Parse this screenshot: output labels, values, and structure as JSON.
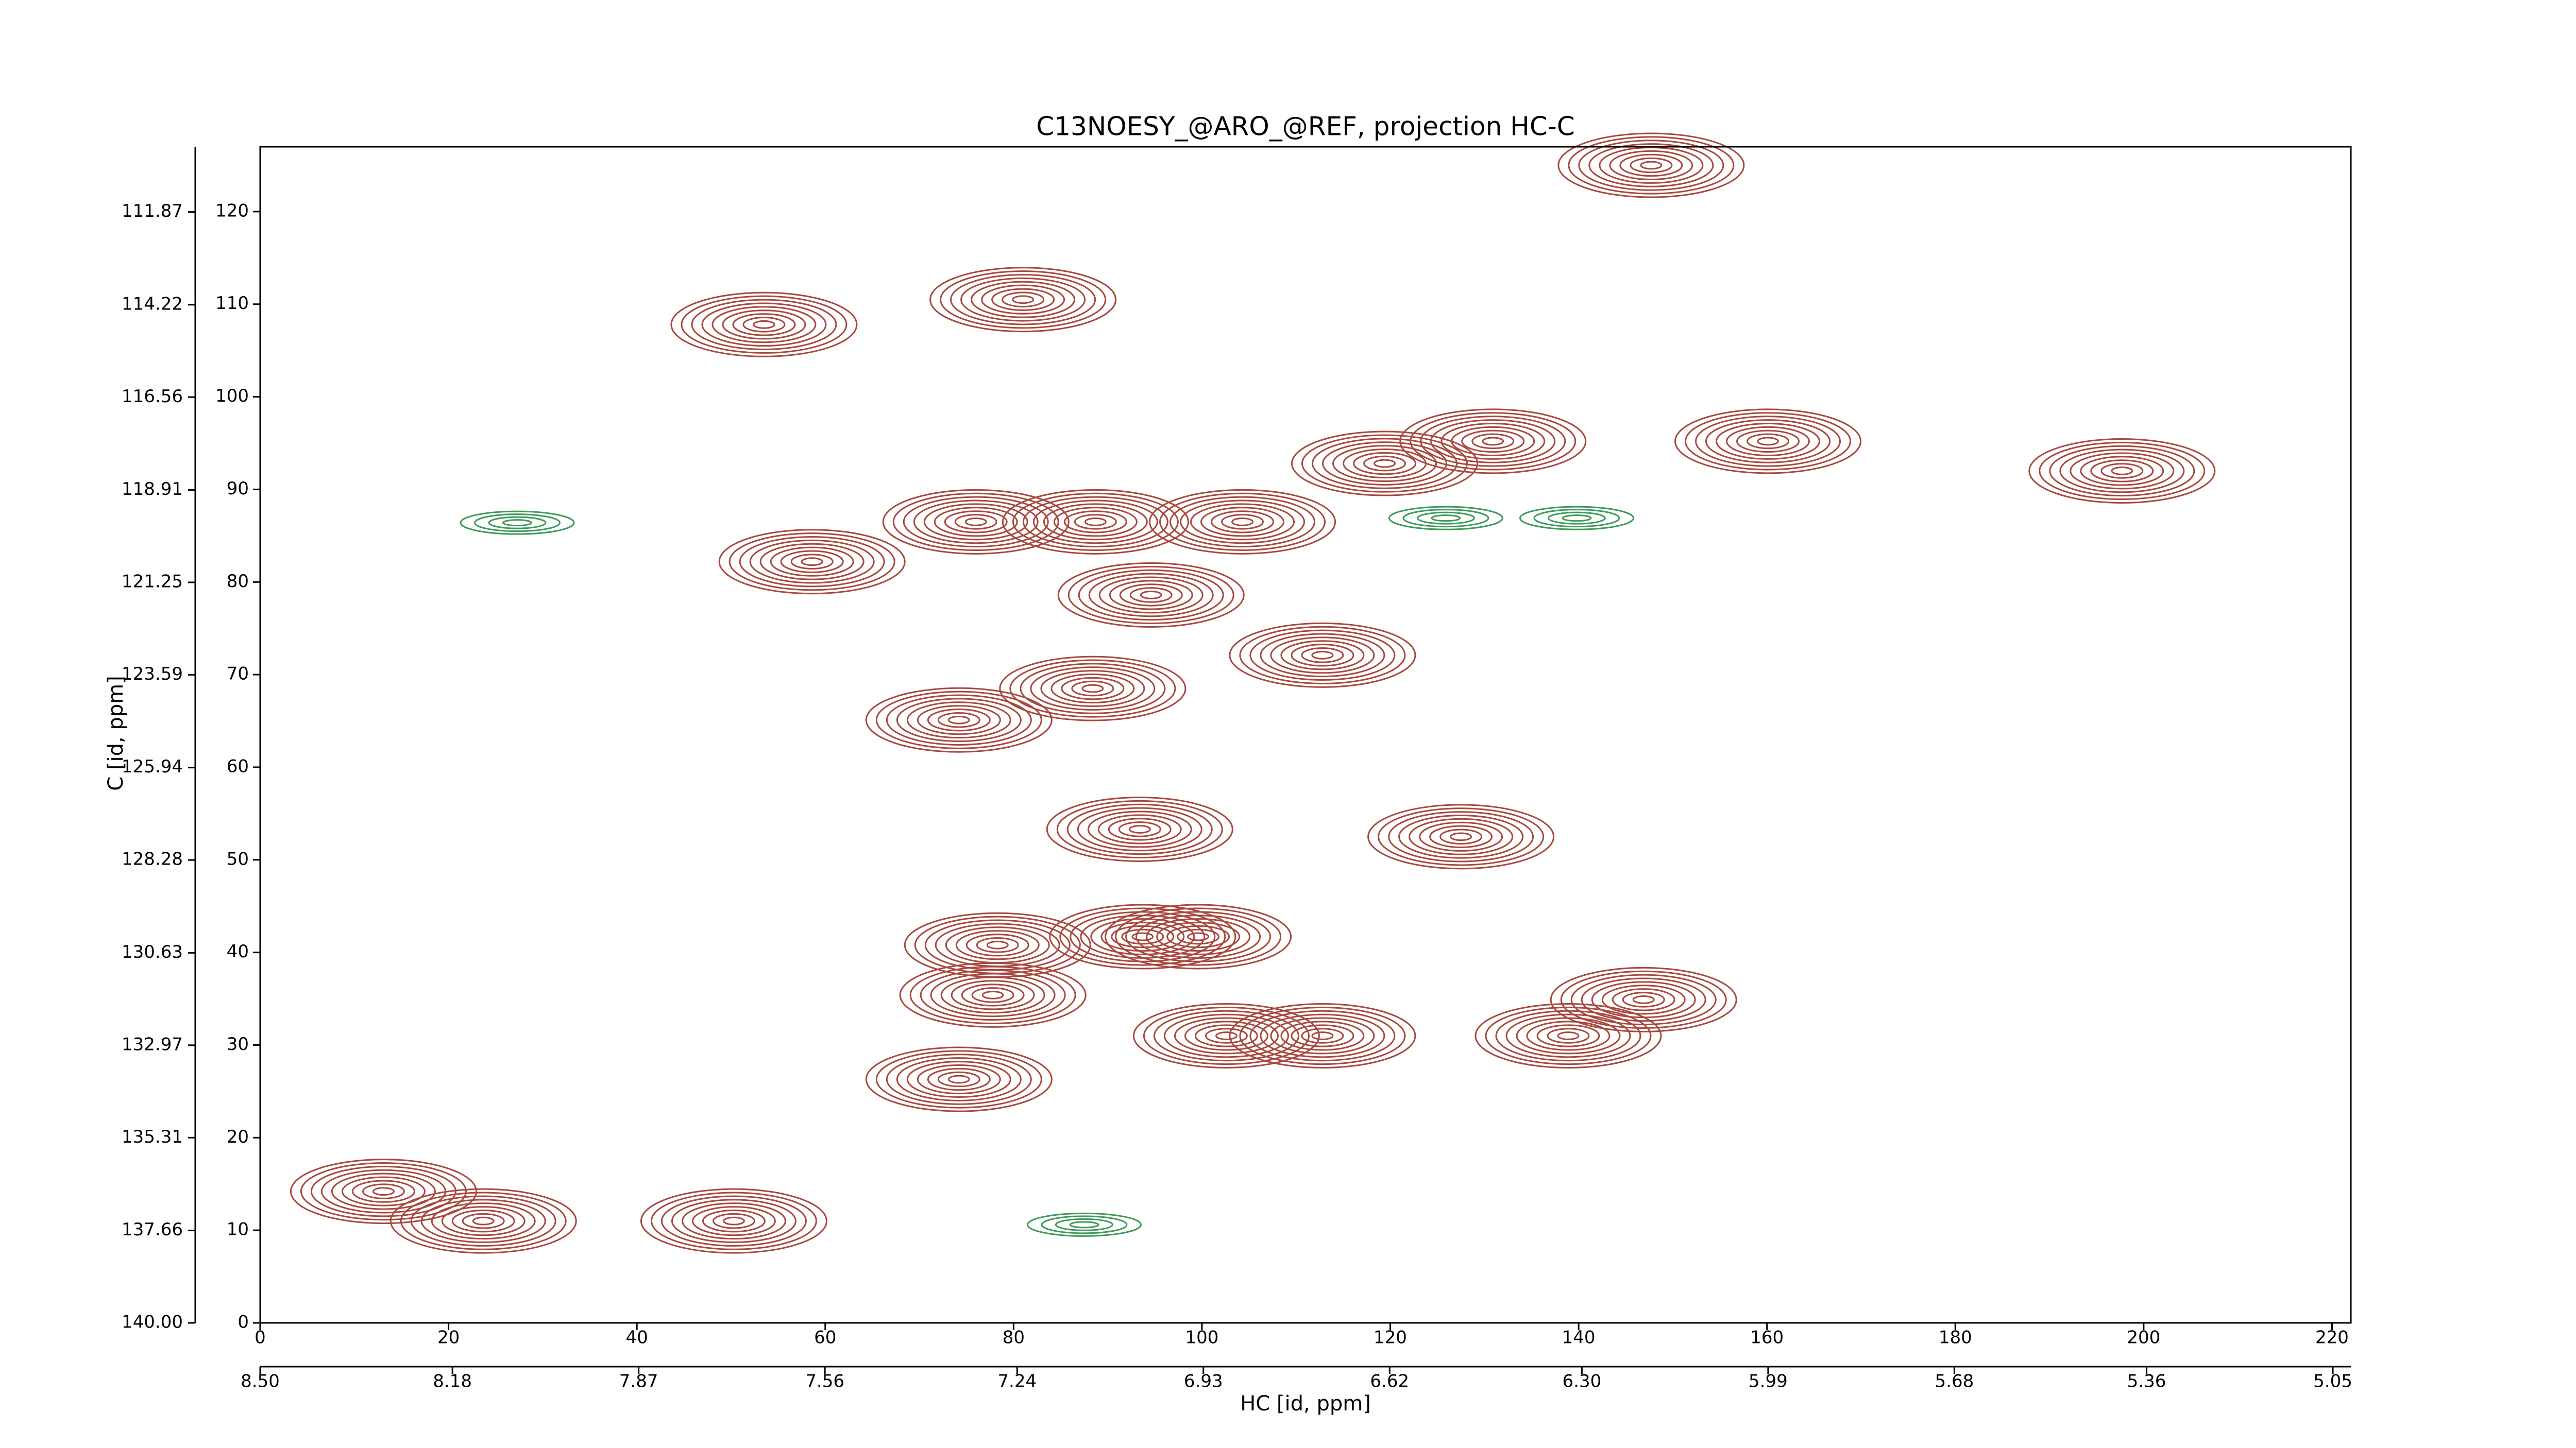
{
  "chart_data": {
    "type": "contour",
    "title": "C13NOESY_@ARO_@REF, projection HC-C",
    "xlabel": "HC [id, ppm]",
    "ylabel": "C [id, ppm]",
    "xlim": [
      0,
      222
    ],
    "xticks": [
      0,
      20,
      40,
      60,
      80,
      100,
      120,
      140,
      160,
      180,
      200,
      220
    ],
    "x2lim": [
      8.5,
      5.02
    ],
    "x2ticks": [
      {
        "value": 8.5,
        "label": "8.50"
      },
      {
        "value": 8.18,
        "label": "8.18"
      },
      {
        "value": 7.87,
        "label": "7.87"
      },
      {
        "value": 7.56,
        "label": "7.56"
      },
      {
        "value": 7.24,
        "label": "7.24"
      },
      {
        "value": 6.93,
        "label": "6.93"
      },
      {
        "value": 6.62,
        "label": "6.62"
      },
      {
        "value": 6.3,
        "label": "6.30"
      },
      {
        "value": 5.99,
        "label": "5.99"
      },
      {
        "value": 5.68,
        "label": "5.68"
      },
      {
        "value": 5.36,
        "label": "5.36"
      },
      {
        "value": 5.05,
        "label": "5.05"
      }
    ],
    "ylim": [
      0,
      127
    ],
    "yticks": [
      0,
      10,
      20,
      30,
      40,
      50,
      60,
      70,
      80,
      90,
      100,
      110,
      120
    ],
    "y2lim": [
      140,
      110.22
    ],
    "y2ticks": [
      {
        "value": 140,
        "label": "140.00"
      },
      {
        "value": 137.66,
        "label": "137.66"
      },
      {
        "value": 135.31,
        "label": "135.31"
      },
      132.97,
      {
        "value": 130.63,
        "label": "130.63"
      },
      128.28,
      125.94,
      123.59,
      121.25,
      118.91,
      116.56,
      114.22,
      111.87
    ],
    "peaks": [
      {
        "color": "#a8483e",
        "x": [
          53.5,
          81,
          147.7,
          58.6,
          76,
          88.7,
          94.6,
          104.3,
          119.4,
          130.9,
          160.1,
          197.7,
          112.8,
          74.2,
          88.4,
          93.4,
          127.5,
          78.3,
          93.7,
          99.6,
          77.8,
          102.6,
          112.8,
          74.2,
          138.9,
          146.9,
          13.1,
          23.7,
          50.3
        ],
        "y": [
          107.8,
          110.5,
          125,
          82.2,
          86.5,
          86.5,
          78.6,
          86.5,
          92.8,
          95.2,
          95.2,
          92,
          72.1,
          65.1,
          68.5,
          53.3,
          52.5,
          40.8,
          41.7,
          41.7,
          35.4,
          31,
          31,
          26.3,
          31,
          34.9,
          14.2,
          11,
          11
        ]
      },
      {
        "color": "#3f9a5a",
        "x": [
          27.3,
          87.5,
          125.9,
          139.8
        ],
        "y": [
          86.4,
          10.6,
          86.9,
          86.9
        ]
      }
    ]
  }
}
